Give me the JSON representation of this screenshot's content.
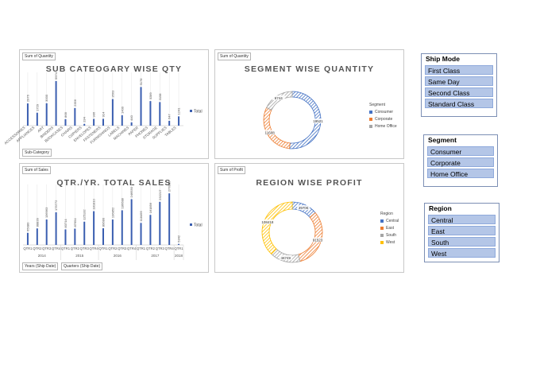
{
  "panels": {
    "subcat": {
      "field_value": "Sum of Quantity",
      "title": "SUB CATEOGARY WISE QTY",
      "field_axis": "Sub-Category",
      "legend": "Total"
    },
    "segment": {
      "field_value": "Sum of Quantity",
      "title": "SEGMENT WISE QUANTITY",
      "legend_title": "Segment"
    },
    "sales": {
      "field_value": "Sum of Sales",
      "title": "QTR./YR. TOTAL SALES",
      "field_axis1": "Years (Ship Date)",
      "field_axis2": "Quarters (Ship Date)",
      "legend": "Total"
    },
    "region": {
      "field_value": "Sum of Profit",
      "title": "REGION WISE PROFIT",
      "legend_title": "Region"
    }
  },
  "chart_data": [
    {
      "type": "bar",
      "title": "SUB CATEOGARY WISE QTY",
      "categories": [
        "ACCESSORIES",
        "APPLIANCES",
        "ART",
        "BINDERS",
        "BOOKCASES",
        "CHAIRS",
        "COPIERS",
        "ENVELOPES",
        "FASTENERS",
        "FURNISHINGS",
        "LABELS",
        "MACHINES",
        "PAPER",
        "PHONES",
        "STORAGE",
        "SUPPLIES",
        "TABLES"
      ],
      "series": [
        {
          "name": "Total",
          "values": [
            2976,
            1729,
            3000,
            5974,
            868,
            2356,
            234,
            906,
            914,
            3563,
            1400,
            440,
            5178,
            3289,
            3158,
            647,
            1241
          ]
        }
      ],
      "ylim": [
        0,
        6500
      ],
      "color": "#3a5eb0"
    },
    {
      "type": "pie",
      "title": "SEGMENT WISE QUANTITY",
      "categories": [
        "Consumer",
        "Corporate",
        "Home Office"
      ],
      "values": [
        19521,
        11608,
        6744
      ],
      "colors": [
        "#4472c4",
        "#ed7d31",
        "#a5a5a5"
      ]
    },
    {
      "type": "bar",
      "title": "QTR./YR. TOTAL SALES",
      "years": [
        "2014",
        "2015",
        "2016",
        "2017",
        "2018"
      ],
      "categories": [
        "QTR1",
        "QTR2",
        "QTR3",
        "QTR4",
        "QTR1",
        "QTR2",
        "QTR3",
        "QTR4",
        "QTR1",
        "QTR2",
        "QTR3",
        "QTR4",
        "QTR1",
        "QTR2",
        "QTR3",
        "QTR4",
        "QTR1"
      ],
      "series": [
        {
          "name": "Total",
          "values": [
            65080,
            88839,
            136963,
            175772,
            83714,
            87654,
            125132,
            181810,
            89680,
            136852,
            186688,
            246530,
            118495,
            161856,
            232217,
            277806,
            5342
          ]
        }
      ],
      "ylim": [
        0,
        300000
      ],
      "color": "#3a5eb0"
    },
    {
      "type": "pie",
      "title": "REGION WISE PROFIT",
      "categories": [
        "Central",
        "East",
        "South",
        "West"
      ],
      "values": [
        39706,
        91523,
        46749,
        108418
      ],
      "colors": [
        "#4472c4",
        "#ed7d31",
        "#a5a5a5",
        "#ffc000"
      ]
    }
  ],
  "slicers": {
    "ship_mode": {
      "title": "Ship Mode",
      "items": [
        "First Class",
        "Same Day",
        "Second Class",
        "Standard Class"
      ]
    },
    "segment": {
      "title": "Segment",
      "items": [
        "Consumer",
        "Corporate",
        "Home Office"
      ]
    },
    "region": {
      "title": "Region",
      "items": [
        "Central",
        "East",
        "South",
        "West"
      ]
    }
  }
}
